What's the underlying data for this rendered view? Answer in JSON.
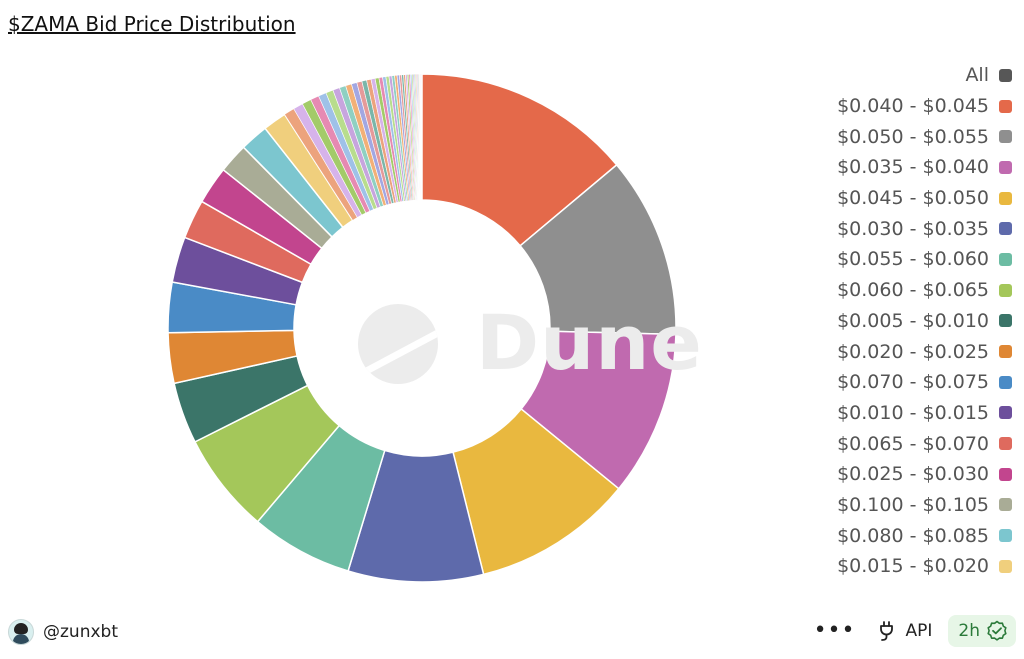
{
  "header": {
    "title": "$ZAMA Bid Price Distribution"
  },
  "watermark": {
    "text": "Dune"
  },
  "chart_data": {
    "type": "pie",
    "donut": true,
    "legend_position": "right",
    "slices": [
      {
        "label": "$0.040 - $0.045",
        "value": 13.9,
        "color": "#e4694a"
      },
      {
        "label": "$0.050 - $0.055",
        "value": 11.5,
        "color": "#8f8f8f"
      },
      {
        "label": "$0.035 - $0.040",
        "value": 10.5,
        "color": "#c06aaf"
      },
      {
        "label": "$0.045 - $0.050",
        "value": 10.2,
        "color": "#e9b83f"
      },
      {
        "label": "$0.030 - $0.035",
        "value": 8.6,
        "color": "#5e6aab"
      },
      {
        "label": "$0.055 - $0.060",
        "value": 6.5,
        "color": "#6cbca3"
      },
      {
        "label": "$0.060 - $0.065",
        "value": 6.4,
        "color": "#a4c75a"
      },
      {
        "label": "$0.005 - $0.010",
        "value": 3.9,
        "color": "#3b7569"
      },
      {
        "label": "$0.020 - $0.025",
        "value": 3.2,
        "color": "#df8734"
      },
      {
        "label": "$0.070 - $0.075",
        "value": 3.2,
        "color": "#4a8bc6"
      },
      {
        "label": "$0.010 - $0.015",
        "value": 2.9,
        "color": "#6d4f9c"
      },
      {
        "label": "$0.065 - $0.070",
        "value": 2.5,
        "color": "#df6a5e"
      },
      {
        "label": "$0.025 - $0.030",
        "value": 2.4,
        "color": "#c2458e"
      },
      {
        "label": "$0.100 - $0.105",
        "value": 1.9,
        "color": "#a9ac96"
      },
      {
        "label": "$0.080 - $0.085",
        "value": 1.8,
        "color": "#7cc6cf"
      },
      {
        "label": "$0.015 - $0.020",
        "value": 1.5,
        "color": "#f0cf7d"
      }
    ],
    "other_slices": {
      "count": 40,
      "total_value": 9.1,
      "colors": [
        "#eca37d",
        "#d6b3ea",
        "#a3cb69",
        "#e68ab2",
        "#9fc1e8",
        "#b8dd8d",
        "#c7a5de",
        "#8fd0c2",
        "#f2b077",
        "#a2a7e2",
        "#e59a9a",
        "#7ab6a9"
      ]
    }
  },
  "legend": {
    "items": [
      {
        "label": "All",
        "color": "#575757"
      },
      {
        "label": "$0.040 - $0.045",
        "color": "#e4694a"
      },
      {
        "label": "$0.050 - $0.055",
        "color": "#8f8f8f"
      },
      {
        "label": "$0.035 - $0.040",
        "color": "#c06aaf"
      },
      {
        "label": "$0.045 - $0.050",
        "color": "#e9b83f"
      },
      {
        "label": "$0.030 - $0.035",
        "color": "#5e6aab"
      },
      {
        "label": "$0.055 - $0.060",
        "color": "#6cbca3"
      },
      {
        "label": "$0.060 - $0.065",
        "color": "#a4c75a"
      },
      {
        "label": "$0.005 - $0.010",
        "color": "#3b7569"
      },
      {
        "label": "$0.020 - $0.025",
        "color": "#df8734"
      },
      {
        "label": "$0.070 - $0.075",
        "color": "#4a8bc6"
      },
      {
        "label": "$0.010 - $0.015",
        "color": "#6d4f9c"
      },
      {
        "label": "$0.065 - $0.070",
        "color": "#df6a5e"
      },
      {
        "label": "$0.025 - $0.030",
        "color": "#c2458e"
      },
      {
        "label": "$0.100 - $0.105",
        "color": "#a9ac96"
      },
      {
        "label": "$0.080 - $0.085",
        "color": "#7cc6cf"
      },
      {
        "label": "$0.015 - $0.020",
        "color": "#f0cf7d"
      }
    ]
  },
  "footer": {
    "username": "@zunxbt",
    "more_label": "•••",
    "api_label": "API",
    "refresh_label": "2h",
    "refresh_color": "#2b7a3a",
    "badge_bg": "#e7f6e7",
    "icons": {
      "avatar": "avatar",
      "more": "more-horizontal-icon",
      "api": "api-plug-icon",
      "refresh": "check-badge-icon"
    }
  }
}
